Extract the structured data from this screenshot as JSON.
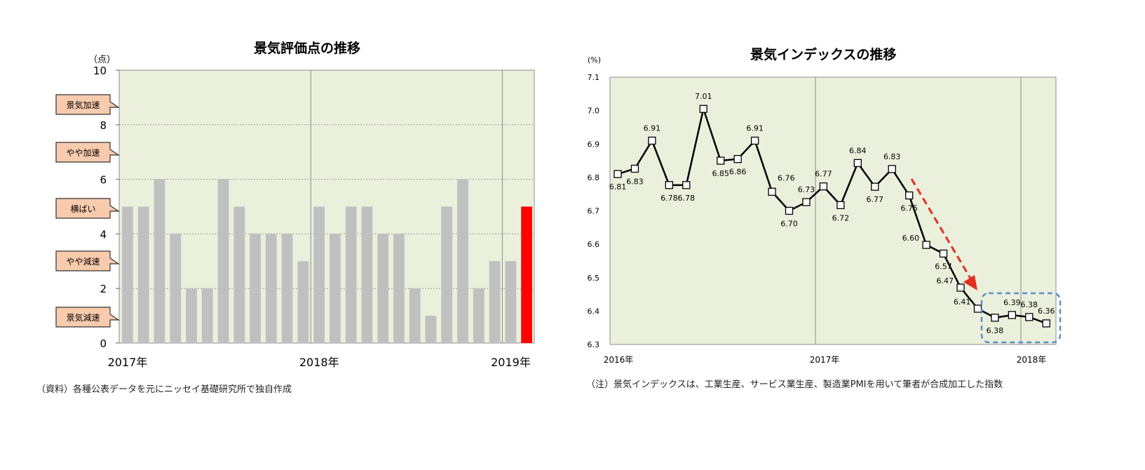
{
  "left": {
    "title": "景気評価点の推移",
    "unit": "（点）",
    "note": "（資料）各種公表データを元にニッセイ基礎研究所で独自作成",
    "callouts": [
      "景気加速",
      "やや加速",
      "横ばい",
      "やや減速",
      "景気減速"
    ],
    "colors": {
      "plot_bg": "#ebf0dc",
      "bar": "#c0c0c0",
      "highlight": "#ff0000",
      "callout_bg": "#f8cbad"
    }
  },
  "right": {
    "title": "景気インデックスの推移",
    "unit": "(%)",
    "note": "（注）景気インデックスは、工業生産、サービス業生産、製造業PMIを用いて筆者が合成加工した指数",
    "colors": {
      "plot_bg": "#ebf0dc",
      "line": "#000000",
      "arrow": "#e03020",
      "box": "#5b8fc9"
    }
  },
  "chart_data": [
    {
      "type": "bar",
      "title": "景気評価点の推移",
      "ylabel": "（点）",
      "ylim": [
        0,
        10
      ],
      "yticks": [
        "0",
        "2",
        "4",
        "6",
        "8",
        "10"
      ],
      "year_labels": [
        "2017年",
        "2018年",
        "2019年"
      ],
      "values": [
        5,
        5,
        6,
        4,
        2,
        2,
        6,
        5,
        4,
        4,
        4,
        3,
        5,
        4,
        5,
        5,
        4,
        4,
        2,
        1,
        5,
        6,
        2,
        3,
        3,
        5
      ],
      "highlight_last": true,
      "grid": "dashed at 2,4,6,8"
    },
    {
      "type": "line",
      "title": "景気インデックスの推移",
      "ylabel": "(%)",
      "ylim": [
        6.3,
        7.1
      ],
      "yticks": [
        "6.3",
        "6.4",
        "6.5",
        "6.6",
        "6.7",
        "6.8",
        "6.9",
        "7.0",
        "7.1"
      ],
      "year_labels": [
        "2016年",
        "2017年",
        "2018年"
      ],
      "values": [
        6.81,
        6.826,
        6.91,
        6.777,
        6.777,
        7.005,
        6.85,
        6.855,
        6.91,
        6.757,
        6.7,
        6.726,
        6.773,
        6.717,
        6.843,
        6.772,
        6.825,
        6.746,
        6.598,
        6.572,
        6.47,
        6.407,
        6.38,
        6.388,
        6.382,
        6.363
      ],
      "labels": [
        "6.81",
        "6.83",
        "6.91",
        "6.78",
        "6.78",
        "7.01",
        "6.85",
        "6.86",
        "6.91",
        "6.76",
        "6.70",
        "6.73",
        "6.77",
        "6.72",
        "6.84",
        "6.77",
        "6.83",
        "6.75",
        "6.60",
        "6.57",
        "6.47",
        "6.41",
        "6.38",
        "6.39",
        "6.38",
        "6.36"
      ],
      "label_pos": [
        "below",
        "below",
        "above",
        "below",
        "below",
        "above",
        "below",
        "below",
        "above",
        "right",
        "below",
        "above",
        "above",
        "below",
        "above",
        "below",
        "above",
        "below",
        "left",
        "below",
        "left",
        "left",
        "below",
        "above",
        "above",
        "above"
      ]
    }
  ]
}
